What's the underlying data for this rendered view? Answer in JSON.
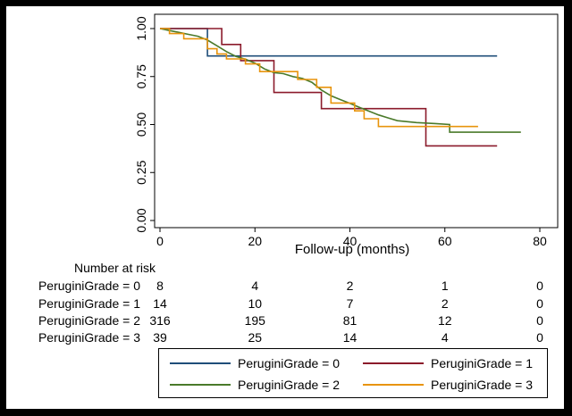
{
  "chart_data": {
    "type": "line",
    "xlabel": "Follow-up (months)",
    "ylabel": "",
    "xlim": [
      0,
      80
    ],
    "ylim": [
      0,
      1
    ],
    "x_ticks": [
      "0",
      "20",
      "40",
      "60",
      "80"
    ],
    "y_ticks": [
      "0.00",
      "0.25",
      "0.50",
      "0.75",
      "1.00"
    ],
    "legend_position": "bottom",
    "series": [
      {
        "name": "PeruginiGrade = 0",
        "color": "#1f4e79",
        "x": [
          0,
          10,
          10,
          71
        ],
        "y": [
          1.0,
          1.0,
          0.857,
          0.857
        ]
      },
      {
        "name": "PeruginiGrade = 1",
        "color": "#8b1a2b",
        "x": [
          0,
          13,
          13,
          17,
          17,
          24,
          24,
          34,
          34,
          56,
          56,
          71
        ],
        "y": [
          1.0,
          1.0,
          0.917,
          0.917,
          0.833,
          0.833,
          0.667,
          0.667,
          0.583,
          0.583,
          0.389,
          0.389
        ]
      },
      {
        "name": "PeruginiGrade = 2",
        "color": "#4a7a2a",
        "x": [
          0,
          2,
          4,
          6,
          8,
          10,
          12,
          14,
          16,
          18,
          20,
          22,
          24,
          26,
          28,
          30,
          32,
          34,
          36,
          38,
          40,
          42,
          44,
          46,
          48,
          50,
          54,
          58,
          61,
          61,
          76
        ],
        "y": [
          1.0,
          0.99,
          0.98,
          0.97,
          0.96,
          0.94,
          0.91,
          0.88,
          0.855,
          0.84,
          0.82,
          0.79,
          0.77,
          0.765,
          0.75,
          0.74,
          0.72,
          0.68,
          0.65,
          0.63,
          0.61,
          0.59,
          0.57,
          0.55,
          0.535,
          0.52,
          0.51,
          0.505,
          0.5,
          0.46,
          0.46
        ]
      },
      {
        "name": "PeruginiGrade = 3",
        "color": "#e8940c",
        "x": [
          0,
          2,
          2,
          5,
          5,
          10,
          10,
          12,
          12,
          14,
          14,
          18,
          18,
          21,
          21,
          29,
          29,
          33,
          33,
          36,
          36,
          41,
          41,
          43,
          43,
          46,
          46,
          50,
          50,
          67
        ],
        "y": [
          1.0,
          1.0,
          0.974,
          0.974,
          0.947,
          0.947,
          0.895,
          0.895,
          0.868,
          0.868,
          0.842,
          0.842,
          0.816,
          0.816,
          0.776,
          0.776,
          0.735,
          0.735,
          0.694,
          0.694,
          0.612,
          0.612,
          0.571,
          0.571,
          0.53,
          0.53,
          0.49,
          0.49,
          0.49,
          0.49
        ]
      }
    ]
  },
  "risk_table": {
    "title": "Number at risk",
    "time_points": [
      0,
      20,
      40,
      60,
      80
    ],
    "rows": [
      {
        "label": "PeruginiGrade = 0",
        "values": [
          "8",
          "4",
          "2",
          "1",
          "0"
        ]
      },
      {
        "label": "PeruginiGrade = 1",
        "values": [
          "14",
          "10",
          "7",
          "2",
          "0"
        ]
      },
      {
        "label": "PeruginiGrade = 2",
        "values": [
          "316",
          "195",
          "81",
          "12",
          "0"
        ]
      },
      {
        "label": "PeruginiGrade = 3",
        "values": [
          "39",
          "25",
          "14",
          "4",
          "0"
        ]
      }
    ]
  },
  "legend": [
    {
      "label": "PeruginiGrade = 0",
      "color": "#1f4e79"
    },
    {
      "label": "PeruginiGrade = 1",
      "color": "#8b1a2b"
    },
    {
      "label": "PeruginiGrade = 2",
      "color": "#4a7a2a"
    },
    {
      "label": "PeruginiGrade = 3",
      "color": "#e8940c"
    }
  ]
}
